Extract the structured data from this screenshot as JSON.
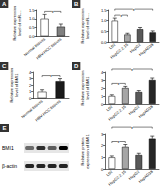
{
  "chart_data": [
    {
      "type": "bar",
      "title": "A",
      "categories": [
        "Normal tissues",
        "HBV-HCC tissues"
      ],
      "values": [
        1.0,
        0.55
      ],
      "errors": [
        0.25,
        0.15
      ],
      "colors": [
        "#ffffff",
        "#808080"
      ],
      "ylabel": "Relative expression\nlevel of miR-...",
      "ylim": [
        0,
        1.5
      ],
      "yticks": [
        {
          "value": 0,
          "label": "0.0"
        },
        {
          "value": 0.5,
          "label": "0.5"
        },
        {
          "value": 1,
          "label": "1.0"
        },
        {
          "value": 1.5,
          "label": "1.5"
        }
      ],
      "grid": false,
      "annotations": [
        {
          "between": [
            "Normal tissues",
            "HBV-HCC tissues"
          ],
          "label": "*"
        }
      ]
    },
    {
      "type": "bar",
      "title": "B",
      "categories": [
        "L02",
        "HepG2.2.15",
        "HepG2",
        "HepAD38"
      ],
      "values": [
        1.0,
        0.35,
        0.6,
        0.45
      ],
      "errors": [
        0.12,
        0.06,
        0.08,
        0.07
      ],
      "colors": [
        "#ffffff",
        "#a6a6a6",
        "#595959",
        "#262626"
      ],
      "ylabel": "Relative expression\nlevel of miR-...",
      "ylim": [
        0,
        1.5
      ],
      "yticks": [
        {
          "value": 0,
          "label": "0.0"
        },
        {
          "value": 0.5,
          "label": "0.5"
        },
        {
          "value": 1,
          "label": "1.0"
        },
        {
          "value": 1.5,
          "label": "1.5"
        }
      ],
      "grid": false,
      "annotations": [
        {
          "between": [
            "L02",
            "HepG2.2.15"
          ],
          "label": "*"
        },
        {
          "between": [
            "L02",
            "HepAD38"
          ],
          "label": "*"
        }
      ]
    },
    {
      "type": "bar",
      "title": "C",
      "categories": [
        "Normal tissues",
        "HBV-HCC tissues"
      ],
      "values": [
        1.0,
        2.6
      ],
      "errors": [
        0.3,
        0.4
      ],
      "colors": [
        "#ffffff",
        "#1a1a1a"
      ],
      "ylabel": "Relative expression\nlevel of BMI1",
      "ylim": [
        0,
        4
      ],
      "yticks": [
        0,
        1,
        2,
        3,
        4
      ],
      "grid": false,
      "annotations": [
        {
          "between": [
            "Normal tissues",
            "HBV-HCC tissues"
          ],
          "label": "*"
        }
      ]
    },
    {
      "type": "bar",
      "title": "D",
      "categories": [
        "L02",
        "HepG2.2.15",
        "HepG2",
        "HepAD38"
      ],
      "values": [
        1.0,
        2.0,
        1.5,
        3.0
      ],
      "errors": [
        0.15,
        0.2,
        0.18,
        0.25
      ],
      "colors": [
        "#ffffff",
        "#a6a6a6",
        "#595959",
        "#262626"
      ],
      "ylabel": "Relative expression\nlevel of BMI1",
      "ylim": [
        0,
        4
      ],
      "yticks": [
        0,
        1,
        2,
        3,
        4
      ],
      "grid": false,
      "annotations": [
        {
          "between": [
            "L02",
            "HepG2.2.15"
          ],
          "label": "*"
        },
        {
          "between": [
            "L02",
            "HepAD38"
          ],
          "label": "*"
        }
      ]
    },
    {
      "type": "bar",
      "categories": [
        "L02",
        "HepG2.2.15",
        "HepG2",
        "HepAD38"
      ],
      "values": [
        1.0,
        1.9,
        1.2,
        2.6
      ],
      "errors": [
        0.12,
        0.2,
        0.15,
        0.22
      ],
      "colors": [
        "#ffffff",
        "#a6a6a6",
        "#595959",
        "#262626"
      ],
      "ylabel": "Relative protein\nexpression of BMI1",
      "ylim": [
        0,
        3
      ],
      "yticks": [
        0,
        1,
        2,
        3
      ],
      "grid": false,
      "annotations": [
        {
          "between": [
            "L02",
            "HepG2.2.15"
          ],
          "label": "*"
        },
        {
          "between": [
            "L02",
            "HepAD38"
          ],
          "label": "*"
        }
      ]
    }
  ],
  "blot": {
    "title": "E",
    "rows": [
      "BMI1",
      "β-actin"
    ]
  }
}
